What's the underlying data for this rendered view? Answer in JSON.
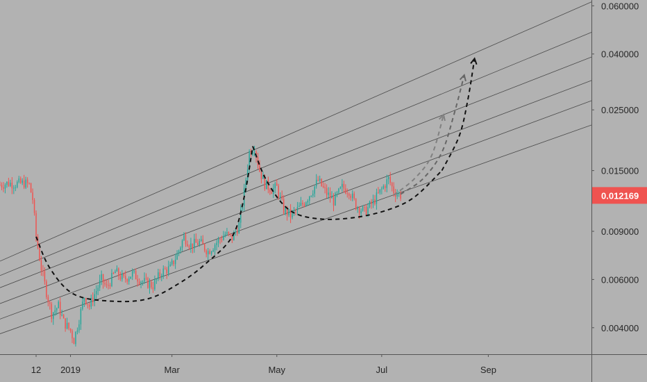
{
  "colors": {
    "background": "#b2b2b2",
    "up_candle": "#26a69a",
    "down_candle": "#ef5350",
    "channel_line": "#4a4a4a",
    "price_tag": "#ef5350",
    "text": "#262626"
  },
  "chart_data": {
    "type": "candlestick",
    "title": "",
    "y_scale": "log",
    "ylim": [
      0.0032,
      0.063
    ],
    "xlim": [
      "2018-11-21",
      "2019-10-31"
    ],
    "x_ticks": [
      {
        "label": "12",
        "date": "2018-12-12"
      },
      {
        "label": "2019",
        "date": "2019-01-01"
      },
      {
        "label": "Mar",
        "date": "2019-03-01"
      },
      {
        "label": "May",
        "date": "2019-05-01"
      },
      {
        "label": "Jul",
        "date": "2019-07-01"
      },
      {
        "label": "Sep",
        "date": "2019-09-01"
      }
    ],
    "y_ticks": [
      {
        "label": "0.060000",
        "value": 0.06
      },
      {
        "label": "0.040000",
        "value": 0.04
      },
      {
        "label": "0.025000",
        "value": 0.025
      },
      {
        "label": "0.015000",
        "value": 0.015
      },
      {
        "label": "0.009000",
        "value": 0.009
      },
      {
        "label": "0.006000",
        "value": 0.006
      },
      {
        "label": "0.004000",
        "value": 0.004
      }
    ],
    "last_price": {
      "label": "0.012169",
      "value": 0.012169
    },
    "price_path": [
      [
        "2018-11-21",
        0.0133
      ],
      [
        "2018-11-26",
        0.0135
      ],
      [
        "2018-11-30",
        0.0134
      ],
      [
        "2018-12-05",
        0.0135
      ],
      [
        "2018-12-08",
        0.0133
      ],
      [
        "2018-12-10",
        0.0118
      ],
      [
        "2018-12-12",
        0.0086
      ],
      [
        "2018-12-15",
        0.0066
      ],
      [
        "2018-12-18",
        0.0054
      ],
      [
        "2018-12-21",
        0.0045
      ],
      [
        "2018-12-25",
        0.0048
      ],
      [
        "2018-12-28",
        0.0042
      ],
      [
        "2019-01-01",
        0.0039
      ],
      [
        "2019-01-03",
        0.0036
      ],
      [
        "2019-01-06",
        0.0043
      ],
      [
        "2019-01-09",
        0.0052
      ],
      [
        "2019-01-12",
        0.0048
      ],
      [
        "2019-01-15",
        0.0053
      ],
      [
        "2019-01-19",
        0.006
      ],
      [
        "2019-01-22",
        0.0056
      ],
      [
        "2019-01-27",
        0.0064
      ],
      [
        "2019-02-01",
        0.006
      ],
      [
        "2019-02-06",
        0.0063
      ],
      [
        "2019-02-12",
        0.0059
      ],
      [
        "2019-02-18",
        0.0057
      ],
      [
        "2019-02-23",
        0.0064
      ],
      [
        "2019-02-28",
        0.0066
      ],
      [
        "2019-03-04",
        0.0074
      ],
      [
        "2019-03-08",
        0.0086
      ],
      [
        "2019-03-12",
        0.008
      ],
      [
        "2019-03-17",
        0.0082
      ],
      [
        "2019-03-22",
        0.0076
      ],
      [
        "2019-03-27",
        0.0082
      ],
      [
        "2019-04-01",
        0.0088
      ],
      [
        "2019-04-05",
        0.0085
      ],
      [
        "2019-04-09",
        0.0095
      ],
      [
        "2019-04-12",
        0.0125
      ],
      [
        "2019-04-15",
        0.0175
      ],
      [
        "2019-04-18",
        0.0184
      ],
      [
        "2019-04-21",
        0.015
      ],
      [
        "2019-04-24",
        0.0134
      ],
      [
        "2019-04-28",
        0.0128
      ],
      [
        "2019-05-01",
        0.013
      ],
      [
        "2019-05-05",
        0.0108
      ],
      [
        "2019-05-09",
        0.0103
      ],
      [
        "2019-05-13",
        0.0108
      ],
      [
        "2019-05-17",
        0.0115
      ],
      [
        "2019-05-21",
        0.0125
      ],
      [
        "2019-05-25",
        0.0138
      ],
      [
        "2019-05-29",
        0.0126
      ],
      [
        "2019-06-03",
        0.0116
      ],
      [
        "2019-06-08",
        0.013
      ],
      [
        "2019-06-12",
        0.0127
      ],
      [
        "2019-06-16",
        0.0112
      ],
      [
        "2019-06-21",
        0.0106
      ],
      [
        "2019-06-26",
        0.0115
      ],
      [
        "2019-07-01",
        0.0128
      ],
      [
        "2019-07-05",
        0.014
      ],
      [
        "2019-07-08",
        0.0126
      ],
      [
        "2019-07-12",
        0.0122
      ]
    ],
    "channel_lines": [
      {
        "start": [
          "2018-11-21",
          0.007
        ],
        "end": [
          "2019-10-31",
          0.062
        ]
      },
      {
        "start": [
          "2018-11-21",
          0.0062
        ],
        "end": [
          "2019-10-31",
          0.048
        ]
      },
      {
        "start": [
          "2018-11-21",
          0.0056
        ],
        "end": [
          "2019-10-31",
          0.039
        ]
      },
      {
        "start": [
          "2018-11-21",
          0.0049
        ],
        "end": [
          "2019-10-31",
          0.032
        ]
      },
      {
        "start": [
          "2018-11-21",
          0.0043
        ],
        "end": [
          "2019-10-31",
          0.027
        ]
      },
      {
        "start": [
          "2018-11-21",
          0.0038
        ],
        "end": [
          "2019-10-31",
          0.022
        ]
      }
    ],
    "annotations": [
      {
        "kind": "dashed-curve",
        "color": "#111111",
        "points": [
          [
            "2018-12-12",
            0.0086
          ],
          [
            "2018-12-20",
            0.0066
          ],
          [
            "2019-01-03",
            0.0053
          ],
          [
            "2019-01-25",
            0.005
          ],
          [
            "2019-02-15",
            0.0051
          ],
          [
            "2019-03-05",
            0.0058
          ],
          [
            "2019-03-20",
            0.0068
          ],
          [
            "2019-04-05",
            0.0086
          ],
          [
            "2019-04-12",
            0.012
          ],
          [
            "2019-04-17",
            0.0184
          ]
        ]
      },
      {
        "kind": "dashed-curve",
        "color": "#111111",
        "points": [
          [
            "2019-04-17",
            0.0184
          ],
          [
            "2019-04-25",
            0.0138
          ],
          [
            "2019-05-08",
            0.0108
          ],
          [
            "2019-05-25",
            0.01
          ],
          [
            "2019-06-15",
            0.0101
          ],
          [
            "2019-07-05",
            0.0108
          ],
          [
            "2019-07-20",
            0.012
          ],
          [
            "2019-08-05",
            0.015
          ]
        ]
      },
      {
        "kind": "dashed-arrow",
        "color": "#111111",
        "points": [
          [
            "2019-08-05",
            0.015
          ],
          [
            "2019-08-15",
            0.02
          ],
          [
            "2019-08-20",
            0.027
          ],
          [
            "2019-08-24",
            0.0385
          ]
        ]
      },
      {
        "kind": "dashed-arrow",
        "color": "#666666",
        "points": [
          [
            "2019-07-12",
            0.0123
          ],
          [
            "2019-07-25",
            0.014
          ],
          [
            "2019-08-05",
            0.0175
          ],
          [
            "2019-08-12",
            0.024
          ],
          [
            "2019-08-18",
            0.0335
          ]
        ]
      },
      {
        "kind": "dashed-arrow",
        "color": "#808080",
        "points": [
          [
            "2019-07-08",
            0.0122
          ],
          [
            "2019-07-20",
            0.014
          ],
          [
            "2019-07-30",
            0.017
          ],
          [
            "2019-08-06",
            0.024
          ]
        ]
      }
    ]
  }
}
